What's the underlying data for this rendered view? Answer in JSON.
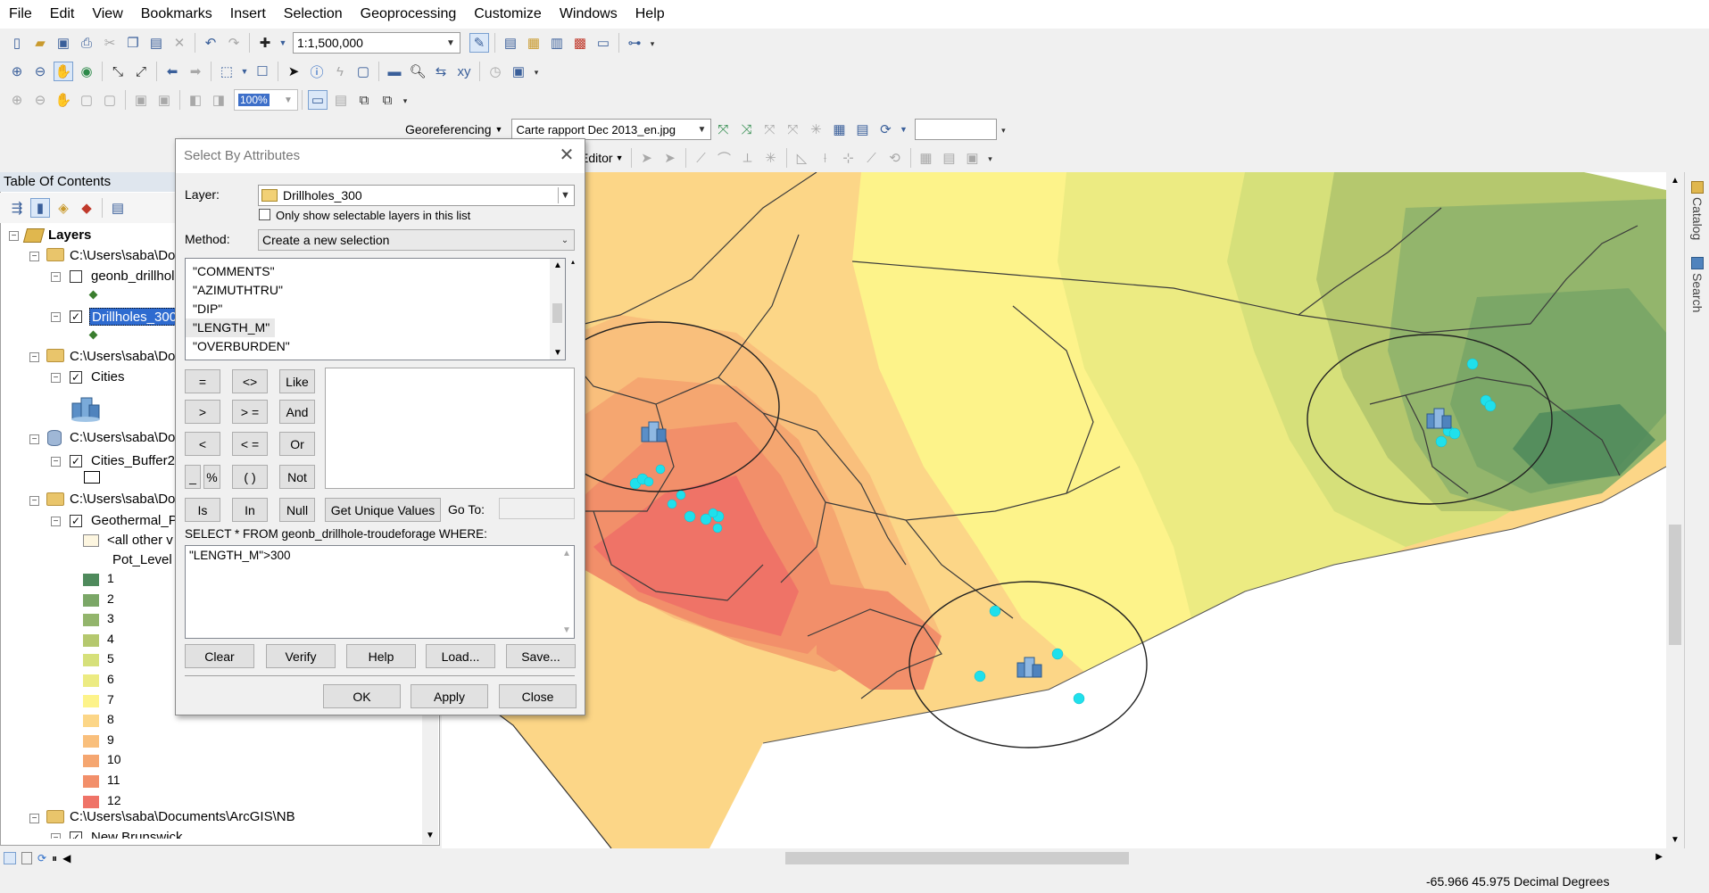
{
  "menu": [
    "File",
    "Edit",
    "View",
    "Bookmarks",
    "Insert",
    "Selection",
    "Geoprocessing",
    "Customize",
    "Windows",
    "Help"
  ],
  "toolbar": {
    "scale": "1:1,500,000",
    "zoom_value": "100%",
    "georeferencing_label": "Georeferencing",
    "raster_file": "Carte rapport Dec 2013_en.jpg",
    "editor_label": "Editor"
  },
  "toc": {
    "title": "Table Of Contents",
    "layers_root": "Layers",
    "group1_path": "C:\\Users\\saba\\Do",
    "layer_geonb": "geonb_drillhol",
    "layer_drillholes": "Drillholes_300",
    "group2_path": "C:\\Users\\saba\\Do",
    "layer_cities": "Cities",
    "group3_path": "C:\\Users\\saba\\Do",
    "layer_buffer": "Cities_Buffer2",
    "group4_path": "C:\\Users\\saba\\Do",
    "layer_geothermal": "Geothermal_P",
    "all_other": "<all other v",
    "field_name": "Pot_Level",
    "legend": [
      {
        "label": "1",
        "color": "#4f8a5c"
      },
      {
        "label": "2",
        "color": "#7ba767"
      },
      {
        "label": "3",
        "color": "#93b56c"
      },
      {
        "label": "4",
        "color": "#b5c86e"
      },
      {
        "label": "5",
        "color": "#d6e07a"
      },
      {
        "label": "6",
        "color": "#eceb82"
      },
      {
        "label": "7",
        "color": "#fdf38a"
      },
      {
        "label": "8",
        "color": "#fcd687"
      },
      {
        "label": "9",
        "color": "#f9bf7c"
      },
      {
        "label": "10",
        "color": "#f5a670"
      },
      {
        "label": "11",
        "color": "#f28f6a"
      },
      {
        "label": "12",
        "color": "#ef7367"
      }
    ],
    "group5_path": "C:\\Users\\saba\\Documents\\ArcGIS\\NB",
    "layer_nb": "New Brunswick"
  },
  "dialog": {
    "title": "Select By Attributes",
    "layer_label": "Layer:",
    "layer_value": "Drillholes_300",
    "only_selectable": "Only show selectable layers in this list",
    "method_label": "Method:",
    "method_value": "Create a new selection",
    "fields": [
      "\"COMMENTS\"",
      "\"AZIMUTHTRU\"",
      "\"DIP\"",
      "\"LENGTH_M\"",
      "\"OVERBURDEN\""
    ],
    "operators": {
      "eq": "=",
      "ne": "<>",
      "like": "Like",
      "gt": ">",
      "ge": "> =",
      "and": "And",
      "lt": "<",
      "le": "< =",
      "or": "Or",
      "underscore": "_",
      "percent": "%",
      "parens": "( )",
      "not": "Not",
      "is": "Is",
      "in": "In",
      "null": "Null"
    },
    "get_unique": "Get Unique Values",
    "goto_label": "Go To:",
    "sql_prefix": "SELECT * FROM geonb_drillhole-troudeforage WHERE:",
    "expression": "\"LENGTH_M\">300",
    "buttons": {
      "clear": "Clear",
      "verify": "Verify",
      "help": "Help",
      "load": "Load...",
      "save": "Save...",
      "ok": "OK",
      "apply": "Apply",
      "close": "Close"
    }
  },
  "sidebar": {
    "catalog": "Catalog",
    "search": "Search"
  },
  "status": {
    "coordinates": "-65.966  45.975 Decimal Degrees"
  }
}
